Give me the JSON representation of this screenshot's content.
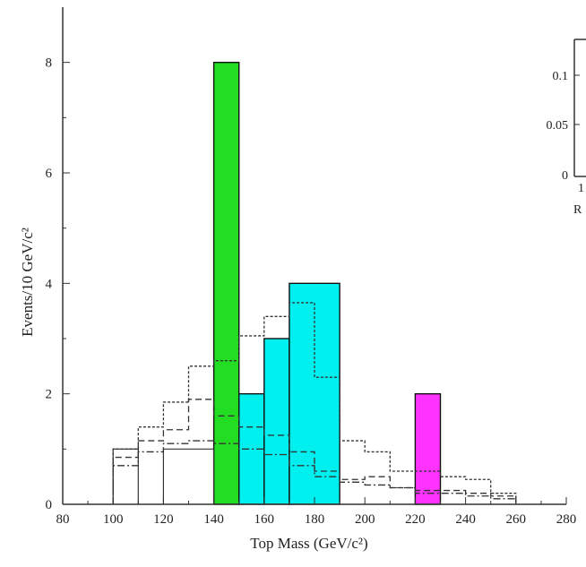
{
  "chart_data": {
    "type": "bar",
    "xlabel": "Top Mass (GeV/c²)",
    "ylabel": "Events/10 GeV/c²",
    "xlim": [
      80,
      280
    ],
    "ylim": [
      0,
      9
    ],
    "xticks": [
      80,
      100,
      120,
      140,
      160,
      180,
      200,
      220,
      240,
      260,
      280
    ],
    "yticks": [
      0,
      2,
      4,
      6,
      8
    ],
    "series": [
      {
        "style": "filled",
        "bins": [
          {
            "x0": 140,
            "x1": 150,
            "value": 8,
            "color": "#22dd22"
          },
          {
            "x0": 150,
            "x1": 160,
            "value": 2,
            "color": "#00f0f0"
          },
          {
            "x0": 160,
            "x1": 170,
            "value": 3,
            "color": "#00f0f0"
          },
          {
            "x0": 170,
            "x1": 190,
            "value": 4,
            "color": "#00f0f0"
          },
          {
            "x0": 220,
            "x1": 230,
            "value": 2,
            "color": "#ff33ff"
          }
        ]
      },
      {
        "style": "solid-outline",
        "bins": [
          {
            "x0": 100,
            "x1": 110,
            "value": 1
          },
          {
            "x0": 120,
            "x1": 140,
            "value": 1
          }
        ]
      },
      {
        "style": "dotted-step",
        "edges": [
          100,
          110,
          120,
          130,
          140,
          150,
          160,
          170,
          180,
          190,
          200,
          210,
          220,
          230,
          240,
          250,
          260
        ],
        "values": [
          1.0,
          1.4,
          1.85,
          2.5,
          2.6,
          3.05,
          3.4,
          3.65,
          2.3,
          1.15,
          0.95,
          0.6,
          0.6,
          0.5,
          0.45,
          0.2
        ]
      },
      {
        "style": "dashed-step",
        "edges": [
          100,
          110,
          120,
          130,
          140,
          150,
          160,
          170,
          180,
          190,
          200,
          210,
          220,
          230,
          240,
          250,
          260
        ],
        "values": [
          0.85,
          1.15,
          1.35,
          1.9,
          1.6,
          1.4,
          1.25,
          0.95,
          0.6,
          0.45,
          0.5,
          0.3,
          0.25,
          0.25,
          0.2,
          0.15
        ]
      },
      {
        "style": "dashdot-step",
        "edges": [
          100,
          110,
          120,
          130,
          140,
          150,
          160,
          170,
          180,
          190,
          200,
          210,
          220,
          230,
          240,
          250,
          260
        ],
        "values": [
          0.7,
          0.95,
          1.1,
          1.15,
          1.1,
          1.0,
          0.9,
          0.7,
          0.5,
          0.4,
          0.35,
          0.3,
          0.2,
          0.2,
          0.15,
          0.1
        ]
      }
    ],
    "inset": {
      "yticks": [
        "0.1",
        "0.05",
        "0"
      ],
      "xlabel_fragment": "R",
      "xtick_fragment": "1"
    }
  }
}
